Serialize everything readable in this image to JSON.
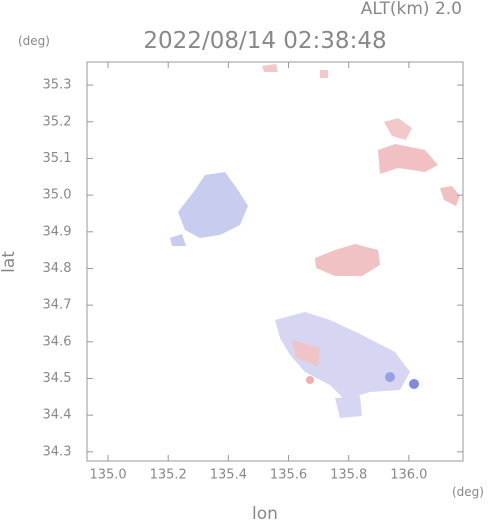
{
  "chart_data": {
    "type": "map",
    "title": "2022/08/14 02:38:48",
    "subtitle": "ALT(km) 2.0",
    "x_label": "lon",
    "x_unit": "(deg)",
    "y_label": "lat",
    "y_unit": "(deg)",
    "xlim": [
      134.93,
      136.18
    ],
    "xticks": [
      {
        "value": 135.0,
        "label": "135.0"
      },
      135.2,
      135.4,
      135.6,
      135.8,
      {
        "value": 136.0,
        "label": "136.0"
      }
    ],
    "ylim": [
      34.275,
      35.363
    ],
    "yticks": [
      34.3,
      34.4,
      34.5,
      34.6,
      34.7,
      34.8,
      34.9,
      {
        "value": 35.0,
        "label": "35.0"
      },
      35.1,
      35.2,
      35.3
    ]
  }
}
